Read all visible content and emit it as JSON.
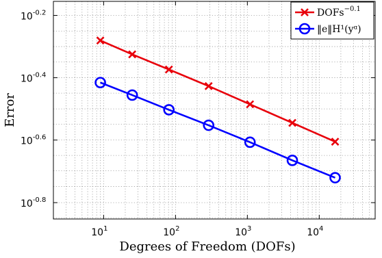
{
  "chart_data": {
    "type": "line",
    "xscale": "log",
    "yscale": "log",
    "xlim": [
      2,
      60000
    ],
    "ylim": [
      0.14,
      0.7
    ],
    "xlabel": "Degrees of Freedom (DOFs)",
    "ylabel": "Error",
    "grid": true,
    "legend_position": "top-right",
    "x_ticks": [
      {
        "value": 10,
        "base": "10",
        "exp": "1"
      },
      {
        "value": 100,
        "base": "10",
        "exp": "2"
      },
      {
        "value": 1000,
        "base": "10",
        "exp": "3"
      },
      {
        "value": 10000,
        "base": "10",
        "exp": "4"
      }
    ],
    "y_ticks": [
      {
        "value": 0.631,
        "base": "10",
        "exp": "-0.2"
      },
      {
        "value": 0.398,
        "base": "10",
        "exp": "-0.4"
      },
      {
        "value": 0.251,
        "base": "10",
        "exp": "-0.6"
      },
      {
        "value": 0.158,
        "base": "10",
        "exp": "-0.8"
      }
    ],
    "series": [
      {
        "name_base": "DOFs",
        "name_exp": "−0.1",
        "color": "#e8000b",
        "marker": "x",
        "x": [
          9,
          25,
          81,
          289,
          1089,
          4225,
          16641
        ],
        "y": [
          0.524,
          0.473,
          0.423,
          0.374,
          0.327,
          0.285,
          0.248
        ]
      },
      {
        "name": "‖e‖H¹(yᵅ)",
        "color": "#0000ff",
        "marker": "o",
        "x": [
          9,
          25,
          81,
          289,
          1089,
          4225,
          16641
        ],
        "y": [
          0.384,
          0.35,
          0.314,
          0.28,
          0.247,
          0.216,
          0.19
        ]
      }
    ]
  }
}
